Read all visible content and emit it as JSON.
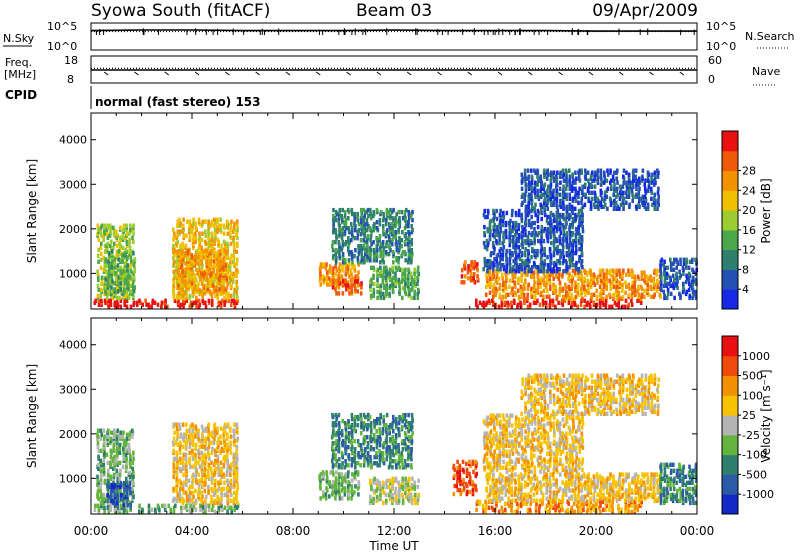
{
  "header": {
    "station": "Syowa South (fitACF)",
    "beam": "Beam 03",
    "date": "09/Apr/2009"
  },
  "strip_labels": {
    "nsky": "N.Sky",
    "freq_line1": "Freq.",
    "freq_line2": "[MHz]",
    "cpid": "CPID",
    "nsearch": "N.Search",
    "nave": "Nave",
    "cpid_value": "normal (fast stereo) 153"
  },
  "colors": {
    "power_scale": [
      "#1428e6",
      "#2450b4",
      "#2e7f6e",
      "#4aa84a",
      "#9ccc32",
      "#f0c000",
      "#f39200",
      "#ef5a0a",
      "#e81010"
    ],
    "velocity_scale": [
      "#1428c8",
      "#2a5aa8",
      "#2e7f6e",
      "#63b43c",
      "#b4b4b4",
      "#f7c200",
      "#f39200",
      "#ef4a0a",
      "#e81010"
    ]
  },
  "chart_data": [
    {
      "type": "line",
      "panel": "noise",
      "xlabel": "",
      "xlim": [
        "00:00",
        "24:00"
      ],
      "ylabel": "N.Sky",
      "ylabel_right": "N.Search",
      "ylim_labels": [
        "10^0",
        "10^5"
      ],
      "right_ylim_labels": [
        "10^0",
        "10^5"
      ],
      "x_hours": [
        0,
        2,
        4,
        6,
        8,
        10,
        12,
        14,
        16,
        18,
        20,
        22,
        24
      ],
      "series": [
        {
          "values": [
            3.6,
            3.7,
            3.7,
            3.6,
            3.6,
            3.6,
            3.7,
            3.6,
            3.6,
            3.6,
            3.5,
            3.5,
            3.5
          ],
          "style": "solid"
        },
        {
          "values": [
            3.4,
            3.4,
            3.4,
            3.4,
            3.4,
            3.4,
            3.4,
            3.4,
            3.4,
            3.4,
            3.4,
            3.4,
            3.4
          ],
          "style": "dotted"
        }
      ]
    },
    {
      "type": "line",
      "panel": "frequency",
      "ylabel": "Freq. [MHz]",
      "ylabel_right": "Nave",
      "yticks": [
        "8",
        "18"
      ],
      "right_yticks": [
        "0",
        "60"
      ],
      "x_hours": [
        0,
        2,
        4,
        6,
        8,
        10,
        12,
        14,
        16,
        18,
        20,
        22,
        24
      ],
      "series": [
        {
          "values": [
            12.8,
            12.8,
            12.8,
            12.8,
            12.8,
            12.8,
            12.8,
            12.8,
            12.8,
            12.8,
            12.8,
            12.8,
            12.8
          ],
          "style": "solid"
        },
        {
          "values": [
            13.4,
            13.4,
            13.4,
            13.4,
            13.4,
            13.4,
            13.4,
            13.4,
            13.4,
            13.4,
            13.4,
            13.4,
            13.4
          ],
          "style": "dotted"
        }
      ]
    },
    {
      "type": "heatmap",
      "panel": "power",
      "ylabel": "Slant Range [km]",
      "yticks": [
        1000,
        2000,
        3000,
        4000
      ],
      "ylim": [
        200,
        4600
      ],
      "xlim_hours": [
        0,
        24
      ],
      "colorbar_label": "Power [dB]",
      "colorbar_ticks": [
        "4",
        "8",
        "12",
        "16",
        "20",
        "24",
        "28"
      ],
      "regions": [
        {
          "t0": 0.1,
          "t1": 5.9,
          "r0": 200,
          "r1": 380,
          "level": 8
        },
        {
          "t0": 0.2,
          "t1": 1.7,
          "r0": 400,
          "r1": 2050,
          "level": 4
        },
        {
          "t0": 0.5,
          "t1": 1.8,
          "r0": 500,
          "r1": 1500,
          "level": 3
        },
        {
          "t0": 3.2,
          "t1": 5.8,
          "r0": 400,
          "r1": 2200,
          "level": 5
        },
        {
          "t0": 3.4,
          "t1": 5.4,
          "r0": 500,
          "r1": 1500,
          "level": 6
        },
        {
          "t0": 9.0,
          "t1": 10.6,
          "r0": 700,
          "r1": 1200,
          "level": 6
        },
        {
          "t0": 9.5,
          "t1": 10.8,
          "r0": 500,
          "r1": 800,
          "level": 7
        },
        {
          "t0": 9.5,
          "t1": 12.8,
          "r0": 1200,
          "r1": 2400,
          "level": 2
        },
        {
          "t0": 11.0,
          "t1": 13.0,
          "r0": 400,
          "r1": 1100,
          "level": 3
        },
        {
          "t0": 14.6,
          "t1": 15.4,
          "r0": 750,
          "r1": 1250,
          "level": 7
        },
        {
          "t0": 15.2,
          "t1": 21.8,
          "r0": 200,
          "r1": 380,
          "level": 8
        },
        {
          "t0": 15.6,
          "t1": 22.6,
          "r0": 380,
          "r1": 1050,
          "level": 6
        },
        {
          "t0": 15.5,
          "t1": 19.5,
          "r0": 1000,
          "r1": 2400,
          "level": 1
        },
        {
          "t0": 17.0,
          "t1": 22.5,
          "r0": 2400,
          "r1": 3300,
          "level": 1
        },
        {
          "t0": 22.5,
          "t1": 24.0,
          "r0": 400,
          "r1": 1300,
          "level": 1
        }
      ]
    },
    {
      "type": "heatmap",
      "panel": "velocity",
      "ylabel": "Slant Range [km]",
      "xlabel": "Time UT",
      "yticks": [
        1000,
        2000,
        3000,
        4000
      ],
      "ylim": [
        200,
        4600
      ],
      "xlim_hours": [
        0,
        24
      ],
      "xticks": [
        "00:00",
        "04:00",
        "08:00",
        "12:00",
        "16:00",
        "20:00",
        "00:00"
      ],
      "colorbar_label": "Velocity [m s⁻¹]",
      "colorbar_ticks": [
        "1000",
        "500",
        "100",
        "25",
        "-25",
        "-100",
        "-500",
        "-1000"
      ],
      "regions": [
        {
          "t0": 0.1,
          "t1": 5.9,
          "r0": 200,
          "r1": 380,
          "level": 3
        },
        {
          "t0": 0.2,
          "t1": 1.7,
          "r0": 400,
          "r1": 2050,
          "level": 3
        },
        {
          "t0": 0.6,
          "t1": 1.6,
          "r0": 350,
          "r1": 900,
          "level": 1
        },
        {
          "t0": 3.2,
          "t1": 5.8,
          "r0": 400,
          "r1": 2200,
          "level": 5
        },
        {
          "t0": 9.0,
          "t1": 10.6,
          "r0": 500,
          "r1": 1150,
          "level": 3
        },
        {
          "t0": 9.5,
          "t1": 12.8,
          "r0": 1200,
          "r1": 2400,
          "level": 2
        },
        {
          "t0": 11.0,
          "t1": 13.0,
          "r0": 400,
          "r1": 1000,
          "level": 4
        },
        {
          "t0": 14.3,
          "t1": 15.3,
          "r0": 600,
          "r1": 1350,
          "level": 7
        },
        {
          "t0": 15.2,
          "t1": 21.8,
          "r0": 200,
          "r1": 450,
          "level": 6
        },
        {
          "t0": 15.6,
          "t1": 22.6,
          "r0": 450,
          "r1": 1100,
          "level": 5
        },
        {
          "t0": 15.5,
          "t1": 19.5,
          "r0": 1100,
          "r1": 2400,
          "level": 5
        },
        {
          "t0": 17.0,
          "t1": 22.5,
          "r0": 2400,
          "r1": 3300,
          "level": 5
        },
        {
          "t0": 22.5,
          "t1": 24.0,
          "r0": 400,
          "r1": 1300,
          "level": 2
        }
      ]
    }
  ]
}
